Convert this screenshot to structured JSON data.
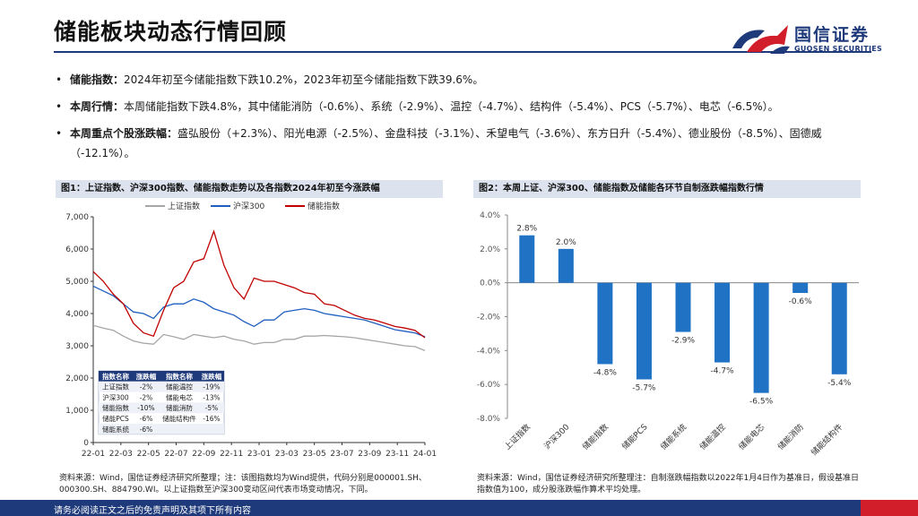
{
  "page": {
    "title": "储能板块动态行情回顾",
    "footer": "请务必阅读正文之后的免责声明及其项下所有内容"
  },
  "brand": {
    "name_cn": "国信证券",
    "name_en": "GUOSEN SECURITIES",
    "colors": {
      "blue": "#1f3a7a",
      "red": "#d21e2b"
    }
  },
  "bullets": [
    {
      "label": "储能指数：",
      "text": "2024年初至今储能指数下跌10.2%，2023年初至今储能指数下跌39.6%。"
    },
    {
      "label": "本周行情：",
      "text": "本周储能指数下跌4.8%，其中储能消防（-0.6%）、系统（-2.9%）、温控（-4.7%）、结构件（-5.4%）、PCS（-5.7%）、电芯（-6.5%）。"
    },
    {
      "label": "本周重点个股涨跌幅：",
      "text": "盛弘股份（+2.3%）、阳光电源（-2.5%）、金盘科技（-3.1%）、禾望电气（-3.6%）、东方日升（-5.4%）、德业股份（-8.5%）、固德威（-12.1%）。"
    }
  ],
  "figure1": {
    "heading": "图1：上证指数、沪深300指数、储能指数走势以及各指数2024年初至今涨跌幅",
    "source": "资料来源：Wind，国信证券经济研究所整理；注：该图指数均为Wind提供，代码分别是000001.SH、000300.SH、884790.WI。以上证指数至沪深300变动区间代表市场变动情况，下同。",
    "table": {
      "headers": [
        "指数名称",
        "涨跌幅",
        "指数名称",
        "涨跌幅"
      ],
      "rows": [
        [
          "上证指数",
          "-2%",
          "储能温控",
          "-19%"
        ],
        [
          "沪深300",
          "-2%",
          "储能电芯",
          "-13%"
        ],
        [
          "储能指数",
          "-10%",
          "储能消防",
          "-5%"
        ],
        [
          "储能PCS",
          "-6%",
          "储能结构件",
          "-16%"
        ],
        [
          "储能系统",
          "-6%",
          "",
          ""
        ]
      ]
    }
  },
  "figure2": {
    "heading": "图2：本周上证、沪深300、储能指数及储能各环节自制涨跌幅指数行情",
    "source": "资料来源：Wind，国信证券经济研究所整理注：自制涨跌幅指数以2022年1月4日作为基准日，假设基准日指数值为100，成分股涨跌幅作算术平均处理。"
  },
  "chart_data": [
    {
      "type": "line",
      "title": "上证指数、沪深300指数、储能指数走势",
      "x_ticks": [
        "22-01",
        "22-03",
        "22-05",
        "22-07",
        "22-09",
        "22-11",
        "23-01",
        "23-03",
        "23-05",
        "23-07",
        "23-09",
        "23-11",
        "24-01"
      ],
      "ylim": [
        0,
        7000
      ],
      "y_ticks": [
        0,
        1000,
        2000,
        3000,
        4000,
        5000,
        6000,
        7000
      ],
      "y_tick_labels": [
        "0",
        "1,000",
        "2,000",
        "3,000",
        "4,000",
        "5,000",
        "6,000",
        "7,000"
      ],
      "legend_position": "top-center",
      "series": [
        {
          "name": "上证指数",
          "color": "#a6a6a6",
          "values": [
            3630,
            3550,
            3480,
            3300,
            3150,
            3080,
            3050,
            3350,
            3280,
            3200,
            3350,
            3300,
            3250,
            3300,
            3200,
            3150,
            3050,
            3100,
            3100,
            3200,
            3200,
            3300,
            3300,
            3320,
            3300,
            3280,
            3250,
            3200,
            3150,
            3100,
            3050,
            3000,
            2975,
            2850
          ]
        },
        {
          "name": "沪深300",
          "color": "#1f5fbf",
          "values": [
            4850,
            4700,
            4550,
            4300,
            4050,
            4000,
            3850,
            4200,
            4300,
            4300,
            4450,
            4350,
            4150,
            4050,
            3950,
            3750,
            3600,
            3800,
            3800,
            4050,
            4100,
            4150,
            4100,
            4000,
            3950,
            3900,
            3850,
            3800,
            3700,
            3600,
            3500,
            3450,
            3400,
            3280
          ]
        },
        {
          "name": "储能指数",
          "color": "#c00000",
          "values": [
            5300,
            5000,
            4600,
            4300,
            3700,
            3400,
            3300,
            4100,
            4800,
            5000,
            5600,
            5700,
            6550,
            5500,
            4800,
            4450,
            5100,
            5000,
            5000,
            4900,
            4800,
            4650,
            4600,
            4300,
            4250,
            4100,
            3950,
            3850,
            3800,
            3700,
            3600,
            3550,
            3480,
            3250
          ]
        }
      ]
    },
    {
      "type": "bar",
      "title": "本周上证、沪深300、储能指数及储能各环节自制涨跌幅指数行情",
      "categories": [
        "上证指数",
        "沪深300",
        "储能指数",
        "储能PCS",
        "储能系统",
        "储能温控",
        "储能电芯",
        "储能消防",
        "储能结构件"
      ],
      "values": [
        2.8,
        2.0,
        -4.8,
        -5.7,
        -2.9,
        -4.7,
        -6.5,
        -0.6,
        -5.4
      ],
      "data_labels": [
        "2.8%",
        "2.0%",
        "-4.8%",
        "-5.7%",
        "-2.9%",
        "-4.7%",
        "-6.5%",
        "-0.6%",
        "-5.4%"
      ],
      "ylim": [
        -8,
        4
      ],
      "y_ticks": [
        -8,
        -6,
        -4,
        -2,
        0,
        2,
        4
      ],
      "y_tick_labels": [
        "-8.0%",
        "-6.0%",
        "-4.0%",
        "-2.0%",
        "0.0%",
        "2.0%",
        "4.0%"
      ],
      "bar_color": "#1f72c4"
    }
  ]
}
